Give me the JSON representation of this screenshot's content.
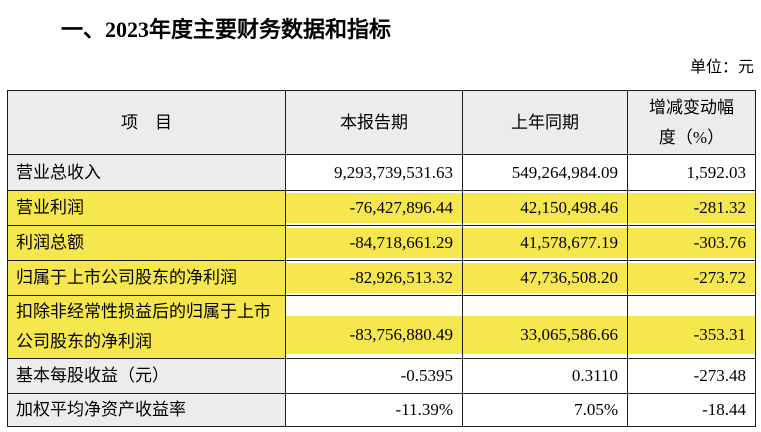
{
  "page": {
    "title": "一、2023年度主要财务数据和指标",
    "unit_label": "单位：元"
  },
  "table": {
    "columns": [
      "项　目",
      "本报告期",
      "上年同期",
      "增减变动幅\n度（%）"
    ],
    "rows": [
      {
        "item": "营业总收入",
        "current": "9,293,739,531.63",
        "prior": "549,264,984.09",
        "change": "1,592.03",
        "highlight": false,
        "tall": false
      },
      {
        "item": "营业利润",
        "current": "-76,427,896.44",
        "prior": "42,150,498.46",
        "change": "-281.32",
        "highlight": true,
        "tall": false
      },
      {
        "item": "利润总额",
        "current": "-84,718,661.29",
        "prior": "41,578,677.19",
        "change": "-303.76",
        "highlight": true,
        "tall": false
      },
      {
        "item": "归属于上市公司股东的净利润",
        "current": "-82,926,513.32",
        "prior": "47,736,508.20",
        "change": "-273.72",
        "highlight": true,
        "tall": false
      },
      {
        "item": "扣除非经常性损益后的归属于上市公司股东的净利润",
        "current": "-83,756,880.49",
        "prior": "33,065,586.66",
        "change": "-353.31",
        "highlight": true,
        "tall": true
      },
      {
        "item": "基本每股收益（元）",
        "current": "-0.5395",
        "prior": "0.3110",
        "change": "-273.48",
        "highlight": false,
        "tall": false
      },
      {
        "item": "加权平均净资产收益率",
        "current": "-11.39%",
        "prior": "7.05%",
        "change": "-18.44",
        "highlight": false,
        "tall": false
      }
    ],
    "colors": {
      "highlight": "#F6E74E",
      "header_bg": "#ECECEC",
      "border": "#1C1C1C"
    }
  }
}
